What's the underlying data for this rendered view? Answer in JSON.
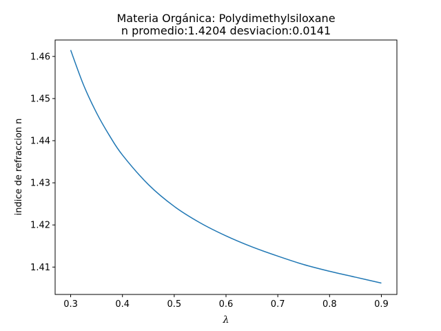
{
  "chart_data": {
    "type": "line",
    "title": "Materia Orgánica: Polydimethylsiloxane",
    "subtitle": "n promedio:1.4204 desviacion:0.0141",
    "xlabel": "λ",
    "ylabel": "indice de refraccion n",
    "xlim": [
      0.27,
      0.93
    ],
    "ylim": [
      1.4035,
      1.4639
    ],
    "x_ticks": [
      0.3,
      0.4,
      0.5,
      0.6,
      0.7,
      0.8,
      0.9
    ],
    "x_tick_labels": [
      "0.3",
      "0.4",
      "0.5",
      "0.6",
      "0.7",
      "0.8",
      "0.9"
    ],
    "y_ticks": [
      1.41,
      1.42,
      1.43,
      1.44,
      1.45,
      1.46
    ],
    "y_tick_labels": [
      "1.41",
      "1.42",
      "1.43",
      "1.44",
      "1.45",
      "1.46"
    ],
    "grid": false,
    "series": [
      {
        "color": "#1f77b4",
        "x": [
          0.3,
          0.325,
          0.35,
          0.375,
          0.4,
          0.45,
          0.5,
          0.55,
          0.6,
          0.65,
          0.7,
          0.75,
          0.8,
          0.85,
          0.9
        ],
        "y": [
          1.4615,
          1.4532,
          1.4466,
          1.4412,
          1.4366,
          1.4296,
          1.4244,
          1.4205,
          1.4174,
          1.4148,
          1.4126,
          1.4106,
          1.409,
          1.4076,
          1.4062
        ]
      }
    ]
  }
}
